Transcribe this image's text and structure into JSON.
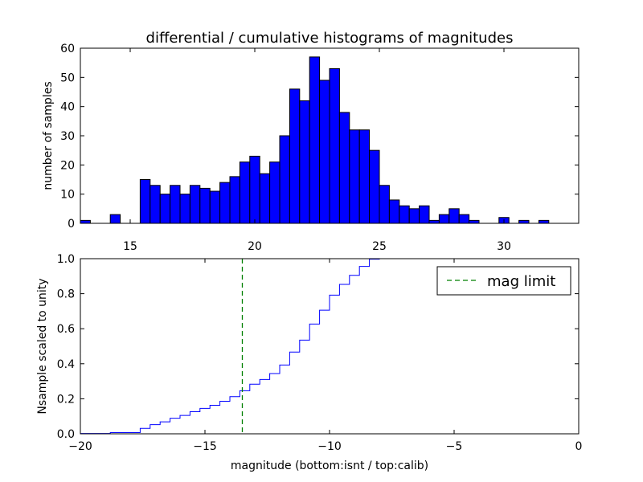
{
  "title": "differential / cumulative histograms of magnitudes",
  "chart_data": [
    {
      "type": "bar",
      "role": "differential histogram",
      "title": "differential / cumulative histograms of magnitudes",
      "xlabel": "",
      "ylabel": "number of samples",
      "xlim": [
        13,
        33
      ],
      "ylim": [
        0,
        60
      ],
      "bin_width": 0.4,
      "bin_start": 13,
      "xticks": [
        15,
        20,
        25,
        30
      ],
      "yticks": [
        0,
        10,
        20,
        30,
        40,
        50,
        60
      ],
      "bar_color": "#0000ff",
      "counts": [
        1,
        0,
        0,
        3,
        0,
        0,
        15,
        13,
        10,
        13,
        10,
        13,
        12,
        11,
        14,
        16,
        21,
        23,
        17,
        21,
        30,
        46,
        42,
        57,
        49,
        53,
        38,
        32,
        32,
        25,
        13,
        8,
        6,
        5,
        6,
        1,
        3,
        5,
        3,
        1,
        0,
        0,
        2,
        0,
        1,
        0,
        1,
        0,
        0,
        0
      ]
    },
    {
      "type": "line",
      "role": "cumulative step",
      "title": "",
      "xlabel": "magnitude (bottom:isnt / top:calib)",
      "ylabel": "Nsample scaled to unity",
      "xlim": [
        -20,
        0
      ],
      "ylim": [
        0,
        1.0
      ],
      "xticks": [
        -20,
        -15,
        -10,
        -5,
        0
      ],
      "xtick_labels": [
        "−20",
        "−15",
        "−10",
        "−5",
        "0"
      ],
      "yticks": [
        0,
        0.2,
        0.4,
        0.6,
        0.8,
        1.0
      ],
      "ytick_labels": [
        "0.0",
        "0.2",
        "0.4",
        "0.6",
        "0.8",
        "1.0"
      ],
      "line_color": "#0000ff",
      "step_x_start": -20,
      "step_width": 0.4,
      "cumulative": [
        0.002,
        0.002,
        0.002,
        0.007,
        0.007,
        0.007,
        0.031,
        0.052,
        0.068,
        0.089,
        0.105,
        0.126,
        0.145,
        0.163,
        0.186,
        0.212,
        0.246,
        0.283,
        0.31,
        0.344,
        0.393,
        0.467,
        0.535,
        0.627,
        0.706,
        0.792,
        0.853,
        0.905,
        0.956,
        0.997,
        1.0,
        1.0,
        1.0,
        1.0,
        1.0,
        1.0,
        1.0,
        1.0,
        1.0,
        1.0,
        1.0,
        1.0,
        1.0,
        1.0,
        1.0,
        1.0,
        1.0,
        1.0,
        1.0,
        1.0
      ],
      "mag_limit": -13.5,
      "mag_limit_color": "#008000",
      "legend": {
        "label": "mag limit",
        "placement": "top-right"
      }
    }
  ]
}
